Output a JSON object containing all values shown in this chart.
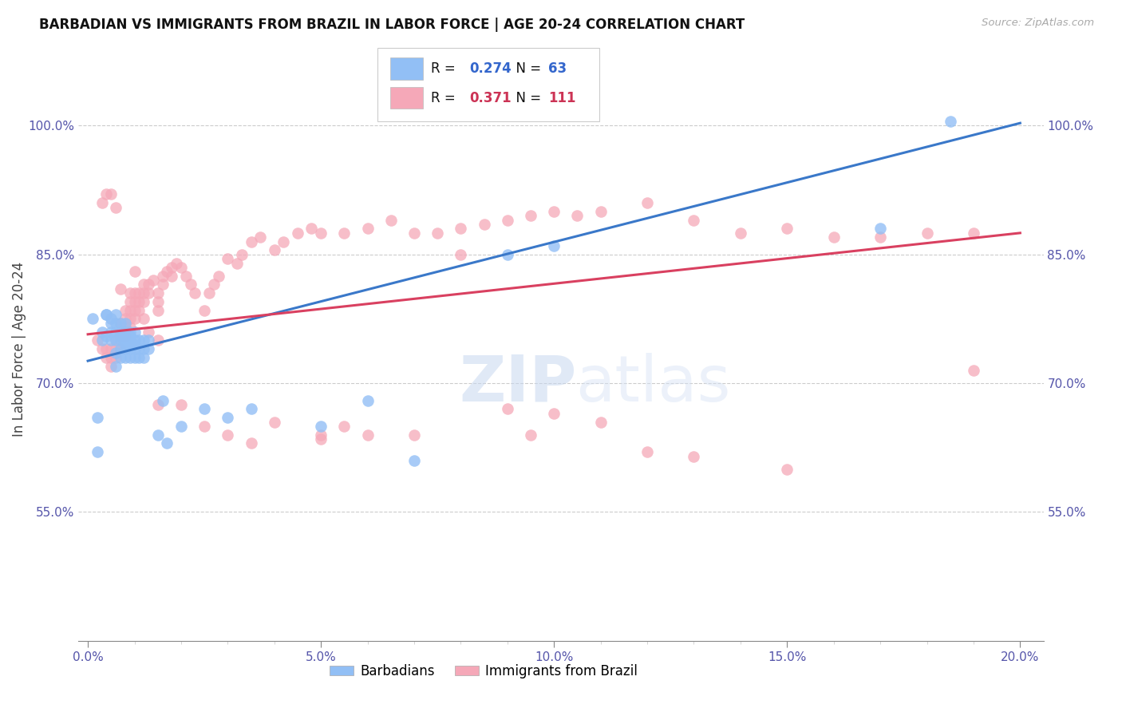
{
  "title": "BARBADIAN VS IMMIGRANTS FROM BRAZIL IN LABOR FORCE | AGE 20-24 CORRELATION CHART",
  "source": "Source: ZipAtlas.com",
  "ylabel": "In Labor Force | Age 20-24",
  "xlim": [
    -0.002,
    0.205
  ],
  "ylim": [
    0.4,
    1.08
  ],
  "xtick_vals": [
    0.0,
    0.05,
    0.1,
    0.15,
    0.2
  ],
  "xtick_labels": [
    "0.0%",
    "5.0%",
    "10.0%",
    "15.0%",
    "20.0%"
  ],
  "ytick_vals": [
    0.55,
    0.7,
    0.85,
    1.0
  ],
  "ytick_labels": [
    "55.0%",
    "70.0%",
    "85.0%",
    "100.0%"
  ],
  "blue_color": "#92bff5",
  "pink_color": "#f5a8b8",
  "blue_line_color": "#3a78c9",
  "pink_line_color": "#d94060",
  "tick_color": "#5555aa",
  "legend_r_blue": "0.274",
  "legend_n_blue": "63",
  "legend_r_pink": "0.371",
  "legend_n_pink": "111",
  "blue_trend": [
    0.0,
    0.2,
    0.726,
    1.003
  ],
  "pink_trend": [
    0.0,
    0.2,
    0.757,
    0.875
  ],
  "blue_x": [
    0.001,
    0.002,
    0.002,
    0.003,
    0.003,
    0.004,
    0.004,
    0.004,
    0.005,
    0.005,
    0.005,
    0.005,
    0.006,
    0.006,
    0.006,
    0.006,
    0.006,
    0.006,
    0.007,
    0.007,
    0.007,
    0.007,
    0.007,
    0.007,
    0.008,
    0.008,
    0.008,
    0.008,
    0.008,
    0.008,
    0.009,
    0.009,
    0.009,
    0.009,
    0.009,
    0.009,
    0.01,
    0.01,
    0.01,
    0.01,
    0.01,
    0.011,
    0.011,
    0.011,
    0.012,
    0.012,
    0.012,
    0.013,
    0.013,
    0.015,
    0.016,
    0.017,
    0.02,
    0.025,
    0.03,
    0.035,
    0.05,
    0.06,
    0.07,
    0.09,
    0.1,
    0.17,
    0.185
  ],
  "blue_y": [
    0.775,
    0.62,
    0.66,
    0.75,
    0.76,
    0.78,
    0.755,
    0.78,
    0.75,
    0.76,
    0.77,
    0.775,
    0.72,
    0.735,
    0.75,
    0.76,
    0.77,
    0.78,
    0.73,
    0.74,
    0.75,
    0.755,
    0.76,
    0.77,
    0.73,
    0.74,
    0.745,
    0.75,
    0.76,
    0.77,
    0.73,
    0.74,
    0.745,
    0.75,
    0.755,
    0.76,
    0.73,
    0.74,
    0.745,
    0.75,
    0.76,
    0.73,
    0.74,
    0.75,
    0.73,
    0.74,
    0.75,
    0.74,
    0.75,
    0.64,
    0.68,
    0.63,
    0.65,
    0.67,
    0.66,
    0.67,
    0.65,
    0.68,
    0.61,
    0.85,
    0.86,
    0.88,
    1.005
  ],
  "pink_x": [
    0.002,
    0.003,
    0.004,
    0.004,
    0.005,
    0.005,
    0.005,
    0.006,
    0.006,
    0.006,
    0.007,
    0.007,
    0.007,
    0.008,
    0.008,
    0.008,
    0.008,
    0.009,
    0.009,
    0.009,
    0.009,
    0.009,
    0.01,
    0.01,
    0.01,
    0.01,
    0.011,
    0.011,
    0.011,
    0.012,
    0.012,
    0.012,
    0.013,
    0.013,
    0.014,
    0.015,
    0.015,
    0.015,
    0.016,
    0.016,
    0.017,
    0.018,
    0.018,
    0.019,
    0.02,
    0.021,
    0.022,
    0.023,
    0.025,
    0.026,
    0.027,
    0.028,
    0.03,
    0.032,
    0.033,
    0.035,
    0.037,
    0.04,
    0.042,
    0.045,
    0.048,
    0.05,
    0.055,
    0.06,
    0.065,
    0.07,
    0.075,
    0.08,
    0.085,
    0.09,
    0.095,
    0.1,
    0.105,
    0.11,
    0.12,
    0.13,
    0.14,
    0.15,
    0.16,
    0.17,
    0.18,
    0.19,
    0.003,
    0.004,
    0.005,
    0.006,
    0.007,
    0.01,
    0.012,
    0.013,
    0.015,
    0.015,
    0.02,
    0.025,
    0.03,
    0.035,
    0.04,
    0.05,
    0.055,
    0.06,
    0.07,
    0.08,
    0.09,
    0.1,
    0.11,
    0.12,
    0.13,
    0.15,
    0.19,
    0.05,
    0.095
  ],
  "pink_y": [
    0.75,
    0.74,
    0.73,
    0.74,
    0.72,
    0.73,
    0.74,
    0.73,
    0.74,
    0.75,
    0.74,
    0.755,
    0.77,
    0.755,
    0.765,
    0.775,
    0.785,
    0.765,
    0.775,
    0.785,
    0.795,
    0.805,
    0.775,
    0.785,
    0.795,
    0.805,
    0.785,
    0.795,
    0.805,
    0.795,
    0.805,
    0.815,
    0.805,
    0.815,
    0.82,
    0.785,
    0.795,
    0.805,
    0.815,
    0.825,
    0.83,
    0.825,
    0.835,
    0.84,
    0.835,
    0.825,
    0.815,
    0.805,
    0.785,
    0.805,
    0.815,
    0.825,
    0.845,
    0.84,
    0.85,
    0.865,
    0.87,
    0.855,
    0.865,
    0.875,
    0.88,
    0.875,
    0.875,
    0.88,
    0.89,
    0.875,
    0.875,
    0.88,
    0.885,
    0.89,
    0.895,
    0.9,
    0.895,
    0.9,
    0.91,
    0.89,
    0.875,
    0.88,
    0.87,
    0.87,
    0.875,
    0.875,
    0.91,
    0.92,
    0.92,
    0.905,
    0.81,
    0.83,
    0.775,
    0.76,
    0.75,
    0.675,
    0.675,
    0.65,
    0.64,
    0.63,
    0.655,
    0.64,
    0.65,
    0.64,
    0.64,
    0.85,
    0.67,
    0.665,
    0.655,
    0.62,
    0.615,
    0.6,
    0.715,
    0.635,
    0.64
  ]
}
